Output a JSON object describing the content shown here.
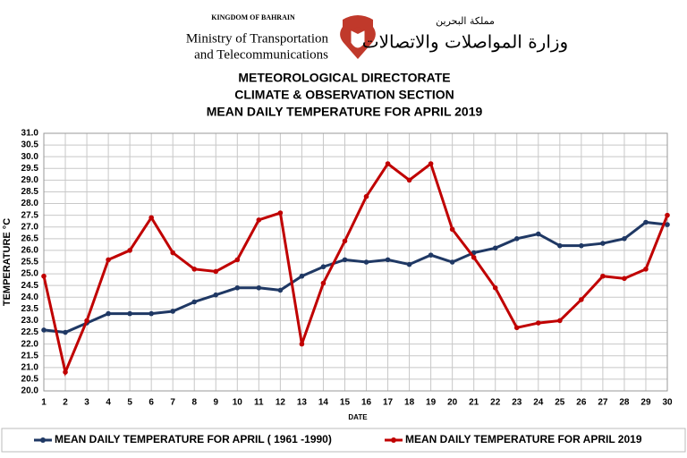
{
  "header": {
    "country": "KINGDOM OF BAHRAIN",
    "ministry_line1": "Ministry of Transportation",
    "ministry_line2": "and Telecommunications",
    "arabic_country": "مملكة البحرين",
    "arabic_ministry": "وزارة المواصلات والاتصالات"
  },
  "chart_data": {
    "type": "line",
    "title": "METEOROLOGICAL DIRECTORATE",
    "subtitle": "CLIMATE & OBSERVATION SECTION",
    "title2": "MEAN DAILY TEMPERATURE FOR APRIL 2019",
    "x_label": "DATE",
    "y_label": "TEMPERATURE °C",
    "categories": [
      "1",
      "2",
      "3",
      "4",
      "5",
      "6",
      "7",
      "8",
      "9",
      "10",
      "11",
      "12",
      "13",
      "14",
      "15",
      "16",
      "17",
      "18",
      "19",
      "20",
      "21",
      "22",
      "23",
      "24",
      "25",
      "26",
      "27",
      "28",
      "29",
      "30"
    ],
    "series": [
      {
        "name": "MEAN DAILY TEMPERATURE FOR APRIL ( 1961 -1990)",
        "color": "#1f3864",
        "values": [
          22.6,
          22.5,
          22.9,
          23.3,
          23.3,
          23.3,
          23.4,
          23.8,
          24.1,
          24.4,
          24.4,
          24.3,
          24.9,
          25.3,
          25.6,
          25.5,
          25.6,
          25.4,
          25.8,
          25.5,
          25.9,
          26.1,
          26.5,
          26.7,
          26.2,
          26.2,
          26.3,
          26.5,
          27.2,
          27.1
        ]
      },
      {
        "name": "MEAN DAILY TEMPERATURE FOR APRIL 2019",
        "color": "#c00000",
        "values": [
          24.9,
          20.8,
          23.0,
          25.6,
          26.0,
          27.4,
          25.9,
          25.2,
          25.1,
          25.6,
          27.3,
          27.6,
          22.0,
          24.6,
          26.4,
          28.3,
          29.7,
          29.0,
          29.7,
          26.9,
          25.7,
          24.4,
          22.7,
          22.9,
          23.0,
          23.9,
          24.9,
          24.8,
          25.2,
          27.5
        ]
      }
    ],
    "ylim": [
      20,
      31
    ],
    "yticks": [
      {
        "value": 20,
        "label": "20.0"
      },
      20.5,
      {
        "value": 21,
        "label": "21.0"
      },
      21.5,
      {
        "value": 22,
        "label": "22.0"
      },
      22.5,
      {
        "value": 23,
        "label": "23.0"
      },
      23.5,
      {
        "value": 24,
        "label": "24.0"
      },
      24.5,
      {
        "value": 25,
        "label": "25.0"
      },
      25.5,
      {
        "value": 26,
        "label": "26.0"
      },
      26.5,
      {
        "value": 27,
        "label": "27.0"
      },
      27.5,
      {
        "value": 28,
        "label": "28.0"
      },
      28.5,
      {
        "value": 29,
        "label": "29.0"
      },
      29.5,
      {
        "value": 30,
        "label": "30.0"
      },
      30.5,
      {
        "value": 31,
        "label": "31.0"
      }
    ],
    "grid": true,
    "legend": "bottom"
  }
}
